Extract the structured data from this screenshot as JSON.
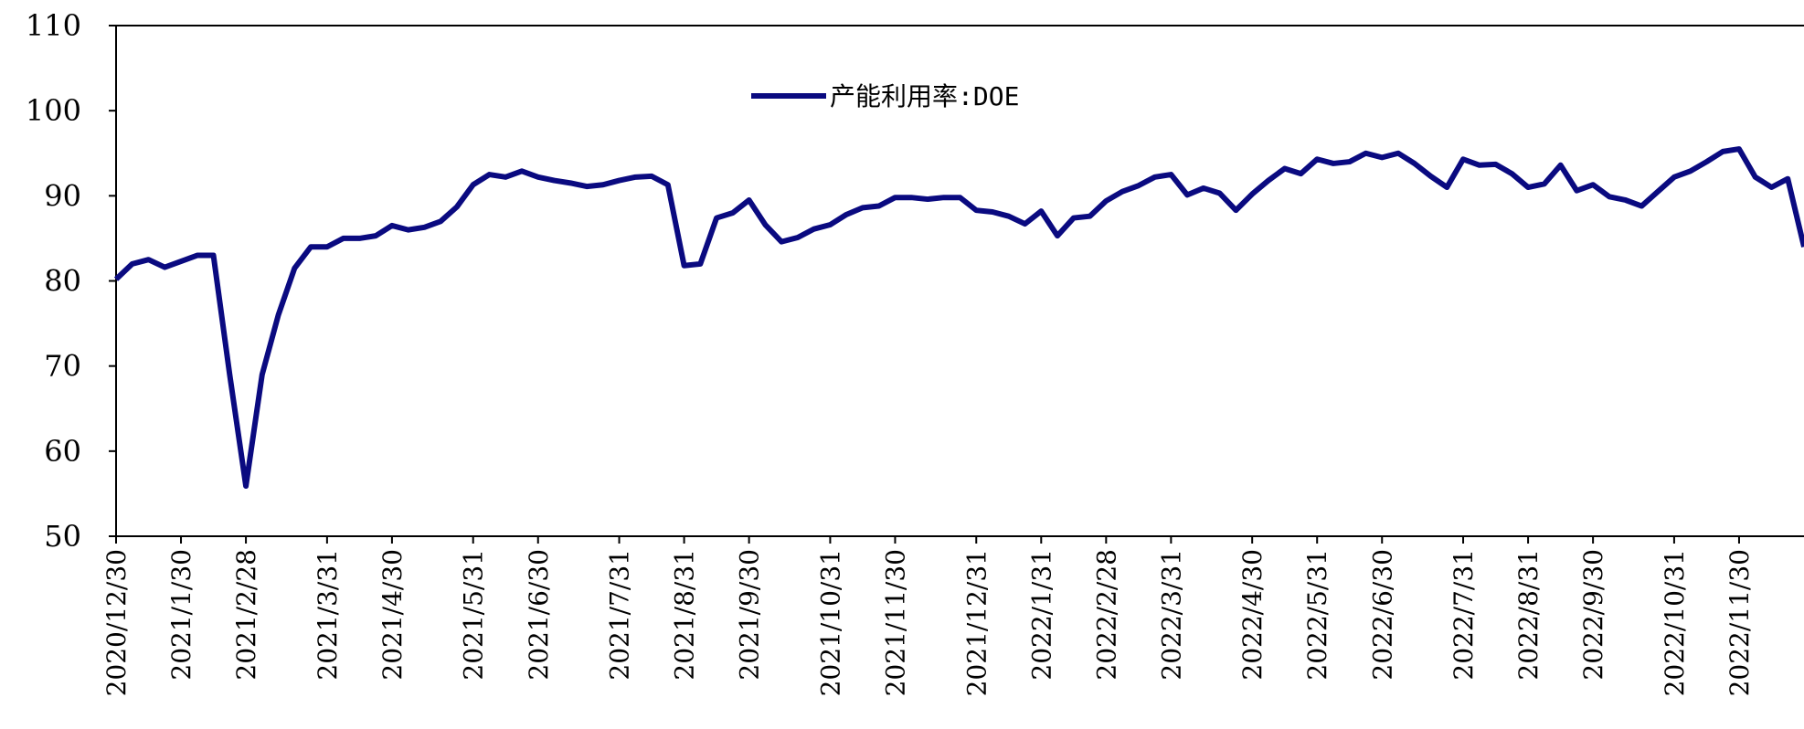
{
  "chart_data": {
    "type": "line",
    "categories": [
      "2020/12/30",
      null,
      null,
      null,
      "2021/1/30",
      null,
      null,
      null,
      "2021/2/28",
      null,
      null,
      null,
      null,
      "2021/3/31",
      null,
      null,
      null,
      "2021/4/30",
      null,
      null,
      null,
      null,
      "2021/5/31",
      null,
      null,
      null,
      "2021/6/30",
      null,
      null,
      null,
      null,
      "2021/7/31",
      null,
      null,
      null,
      "2021/8/31",
      null,
      null,
      null,
      "2021/9/30",
      null,
      null,
      null,
      null,
      "2021/10/31",
      null,
      null,
      null,
      "2021/11/30",
      null,
      null,
      null,
      null,
      "2021/12/31",
      null,
      null,
      null,
      "2022/1/31",
      null,
      null,
      null,
      "2022/2/28",
      null,
      null,
      null,
      "2022/3/31",
      null,
      null,
      null,
      null,
      "2022/4/30",
      null,
      null,
      null,
      "2022/5/31",
      null,
      null,
      null,
      "2022/6/30",
      null,
      null,
      null,
      null,
      "2022/7/31",
      null,
      null,
      null,
      "2022/8/31",
      null,
      null,
      null,
      "2022/9/30",
      null,
      null,
      null,
      null,
      "2022/10/31",
      null,
      null,
      null,
      "2022/11/30",
      null,
      null,
      null,
      null
    ],
    "series": [
      {
        "name": "产能利用率:DOE",
        "color": "#0a0a80",
        "values": [
          80.2,
          82,
          82.5,
          81.6,
          82.3,
          83,
          83,
          69,
          55.9,
          69,
          76,
          81.5,
          84,
          84,
          85,
          85,
          85.3,
          86.5,
          86,
          86.3,
          87,
          88.7,
          91.3,
          92.5,
          92.2,
          92.9,
          92.2,
          91.8,
          91.5,
          91.1,
          91.3,
          91.8,
          92.2,
          92.3,
          91.3,
          81.8,
          82,
          87.4,
          88,
          89.5,
          86.6,
          84.6,
          85.1,
          86.1,
          86.6,
          87.8,
          88.6,
          88.8,
          89.8,
          89.8,
          89.6,
          89.8,
          89.8,
          88.3,
          88.1,
          87.6,
          86.7,
          88.2,
          85.3,
          87.4,
          87.6,
          89.4,
          90.5,
          91.2,
          92.2,
          92.5,
          90.1,
          90.9,
          90.3,
          88.3,
          90.2,
          91.8,
          93.2,
          92.6,
          94.3,
          93.8,
          94,
          95,
          94.5,
          95,
          93.8,
          92.3,
          91,
          94.3,
          93.6,
          93.7,
          92.6,
          91,
          91.4,
          93.6,
          90.6,
          91.3,
          89.9,
          89.5,
          88.8,
          90.5,
          92.2,
          92.9,
          94,
          95.2,
          95.5,
          92.2,
          91,
          92,
          84
        ]
      }
    ],
    "ylim": [
      50,
      110
    ],
    "yticks": [
      50,
      60,
      70,
      80,
      90,
      100,
      110
    ],
    "grid": false,
    "legend": "top"
  }
}
